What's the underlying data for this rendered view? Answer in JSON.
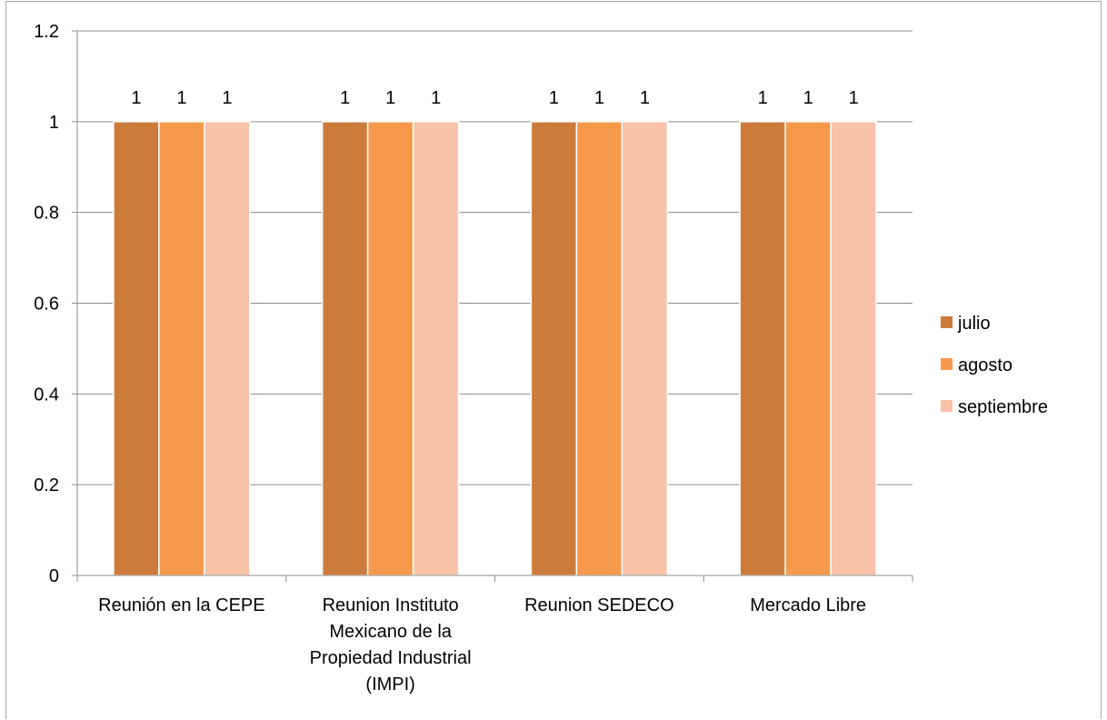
{
  "chart_data": {
    "type": "bar",
    "categories": [
      [
        "Reunión en la CEPE"
      ],
      [
        "Reunion Instituto",
        "Mexicano de la",
        "Propiedad Industrial",
        "(IMPI)"
      ],
      [
        "Reunion SEDECO"
      ],
      [
        "Mercado Libre"
      ]
    ],
    "series": [
      {
        "name": "julio",
        "values": [
          1,
          1,
          1,
          1
        ],
        "color": "#CD7B3A"
      },
      {
        "name": "agosto",
        "values": [
          1,
          1,
          1,
          1
        ],
        "color": "#F7994A"
      },
      {
        "name": "septiembre",
        "values": [
          1,
          1,
          1,
          1
        ],
        "color": "#F9C2A8"
      }
    ],
    "data_labels": [
      [
        "1",
        "1",
        "1",
        "1"
      ],
      [
        "1",
        "1",
        "1",
        "1"
      ],
      [
        "1",
        "1",
        "1",
        "1"
      ]
    ],
    "y_ticks": [
      "0",
      "0.2",
      "0.4",
      "0.6",
      "0.8",
      "1",
      "1.2"
    ],
    "ylim": [
      0,
      1.2
    ],
    "grid": true,
    "legend": "right",
    "title": "",
    "xlabel": "",
    "ylabel": ""
  }
}
